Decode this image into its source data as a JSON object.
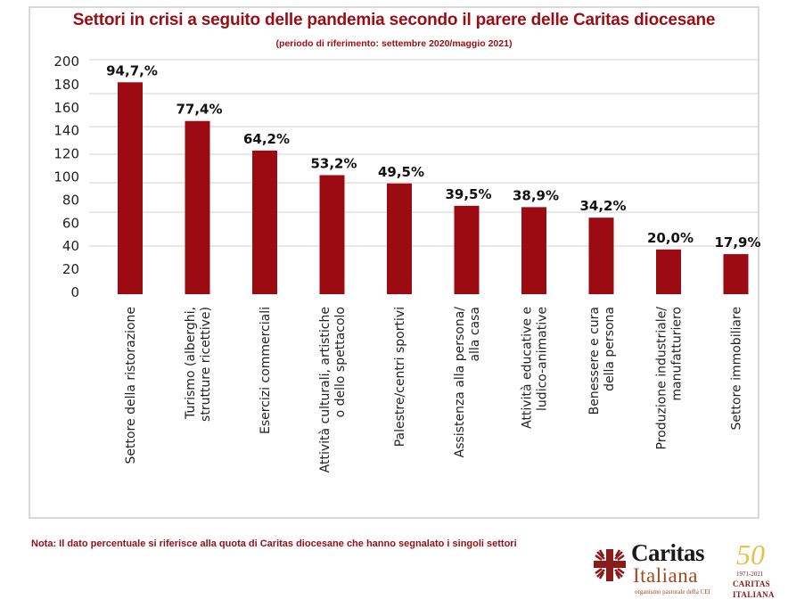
{
  "chart_data": {
    "type": "bar",
    "title": "Settori in crisi a seguito delle pandemia secondo il parere delle Caritas diocesane",
    "subtitle": "(periodo di riferimento: settembre 2020/maggio 2021)",
    "xlabel": "",
    "ylabel": "",
    "ylim": [
      0,
      200
    ],
    "yticks": [
      "200",
      "180",
      "160",
      "140",
      "120",
      "100",
      "80",
      "60",
      "40",
      "20",
      "0"
    ],
    "grid": true,
    "categories": [
      [
        "Settore della ristorazione"
      ],
      [
        "Turismo (alberghi,",
        "strutture ricettive)"
      ],
      [
        "Esercizi commerciali"
      ],
      [
        "Attività culturali, artistiche",
        "o dello spettacolo"
      ],
      [
        "Palestre/centri sportivi"
      ],
      [
        "Assistenza alla persona/",
        "alla casa"
      ],
      [
        "Attività educative e",
        "ludico-animative"
      ],
      [
        "Benessere e cura",
        "della persona"
      ],
      [
        "Produzione industriale/",
        "manufatturiero"
      ],
      [
        "Settore immobiliare"
      ]
    ],
    "values": [
      94.7,
      77.4,
      64.2,
      53.2,
      49.5,
      39.5,
      38.9,
      34.2,
      20.0,
      17.9
    ],
    "data_labels": [
      "94,7,%",
      "77,4%",
      "64,2%",
      "53,2%",
      "49,5%",
      "39,5%",
      "38,9%",
      "34,2%",
      "20,0%",
      "17,9%"
    ],
    "bar_color": "#9c0a12",
    "legend": "none"
  },
  "footer": {
    "note": "Nota: Il dato percentuale si riferisce alla quota di Caritas diocesane che hanno segnalato i singoli settori"
  },
  "logo": {
    "name_line1": "Caritas",
    "name_line2": "Italiana",
    "tagline": "organismo pastorale della CEI",
    "anniversary_number": "50",
    "anniversary_years": "1971-2021",
    "anniversary_line1": "CARITAS",
    "anniversary_line2": "ITALIANA"
  },
  "colors": {
    "accent": "#9b0d14",
    "bar": "#9c0a12",
    "grid": "#d9d9d9",
    "logo_brown": "#a8481e",
    "logo_gold": "#e8c04a"
  }
}
